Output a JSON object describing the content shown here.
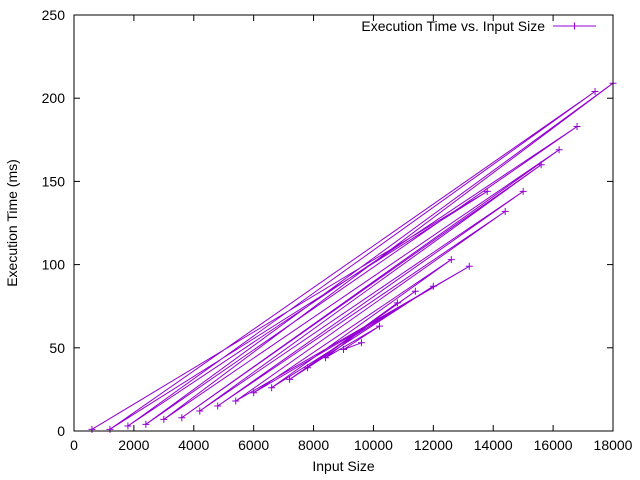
{
  "chart_data": {
    "type": "line",
    "title": "",
    "xlabel": "Input Size",
    "ylabel": "Execution Time (ms)",
    "xlim": [
      0,
      18000
    ],
    "ylim": [
      0,
      250
    ],
    "xticks": [
      0,
      2000,
      4000,
      6000,
      8000,
      10000,
      12000,
      14000,
      16000,
      18000
    ],
    "yticks": [
      0,
      50,
      100,
      150,
      200,
      250
    ],
    "xtick_labels": [
      "0",
      "2000",
      "4000",
      "6000",
      "8000",
      "10000",
      "12000",
      "14000",
      "16000",
      "18000"
    ],
    "ytick_labels": [
      "0",
      "50",
      "100",
      "150",
      "200",
      "250"
    ],
    "grid": false,
    "legend_position": "top-right",
    "color": "#9400d3",
    "marker": "plus",
    "series": [
      {
        "name": "Execution Time vs. Input Size",
        "points": [
          [
            600,
            1
          ],
          [
            13800,
            144
          ],
          [
            1200,
            1
          ],
          [
            17400,
            204
          ],
          [
            1800,
            3
          ],
          [
            16800,
            183
          ],
          [
            2400,
            4
          ],
          [
            18000,
            209
          ],
          [
            3000,
            7
          ],
          [
            16200,
            169
          ],
          [
            3600,
            8
          ],
          [
            15600,
            160
          ],
          [
            4200,
            12
          ],
          [
            15000,
            144
          ],
          [
            4800,
            15
          ],
          [
            14400,
            132
          ],
          [
            5400,
            18
          ],
          [
            13200,
            99
          ],
          [
            6000,
            23
          ],
          [
            12600,
            103
          ],
          [
            6600,
            26
          ],
          [
            12000,
            87
          ],
          [
            7200,
            31
          ],
          [
            11400,
            84
          ],
          [
            7800,
            38
          ],
          [
            10800,
            77
          ],
          [
            8400,
            44
          ],
          [
            10200,
            63
          ],
          [
            9000,
            49
          ],
          [
            9600,
            53
          ]
        ]
      }
    ]
  }
}
